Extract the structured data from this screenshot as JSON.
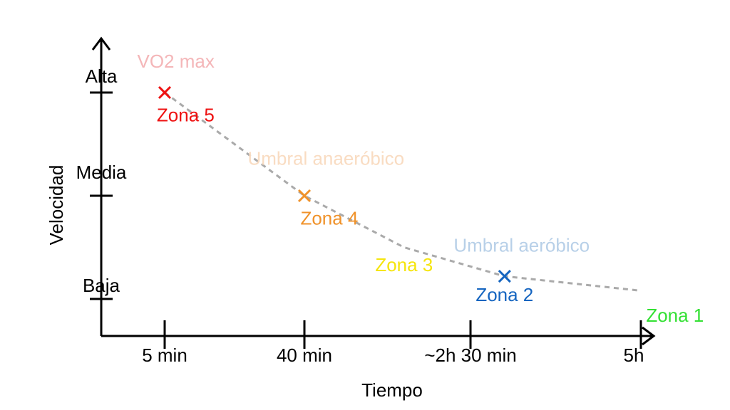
{
  "chart_data": {
    "type": "line",
    "xlabel": "Tiempo",
    "ylabel": "Velocidad",
    "x_ticks": [
      "5 min",
      "40 min",
      "~2h 30 min",
      "5h"
    ],
    "y_ticks": [
      "Alta",
      "Media",
      "Baja"
    ],
    "curve": {
      "style": "dashed",
      "color": "#aaaaaa",
      "points": [
        {
          "x": 0.0,
          "y": 3.0
        },
        {
          "x": 1.0,
          "y": 2.0
        },
        {
          "x": 1.6,
          "y": 1.5
        },
        {
          "x": 2.2,
          "y": 1.22
        },
        {
          "x": 3.0,
          "y": 1.08
        }
      ]
    },
    "markers": [
      {
        "x": 0.0,
        "y": 3.0,
        "color": "#ee1111"
      },
      {
        "x": 1.0,
        "y": 2.0,
        "color": "#f0922a"
      },
      {
        "x": 2.2,
        "y": 1.22,
        "color": "#1565c0"
      }
    ],
    "zones": [
      {
        "label": "Zona 5",
        "x": 0.15,
        "y": 2.72,
        "color": "#ee1111"
      },
      {
        "label": "Zona 4",
        "x": 1.15,
        "y": 1.72,
        "color": "#f0922a"
      },
      {
        "label": "Zona 3",
        "x": 1.6,
        "y": 1.27,
        "color": "#f5e50c"
      },
      {
        "label": "Zona 2",
        "x": 2.2,
        "y": 0.98,
        "color": "#1565c0"
      },
      {
        "label": "Zona 1",
        "x": 3.2,
        "y": 0.78,
        "color": "#33e033"
      }
    ],
    "thresholds": [
      {
        "label": "VO2 max",
        "x": 0.08,
        "y": 3.24,
        "color": "#f4b6b8"
      },
      {
        "label": "Umbral anaeróbico",
        "x": 1.13,
        "y": 2.3,
        "color": "#f9dcc2"
      },
      {
        "label": "Umbral aeróbico",
        "x": 2.3,
        "y": 1.46,
        "color": "#b8d0e8"
      }
    ],
    "arrows": true,
    "grid": false
  }
}
